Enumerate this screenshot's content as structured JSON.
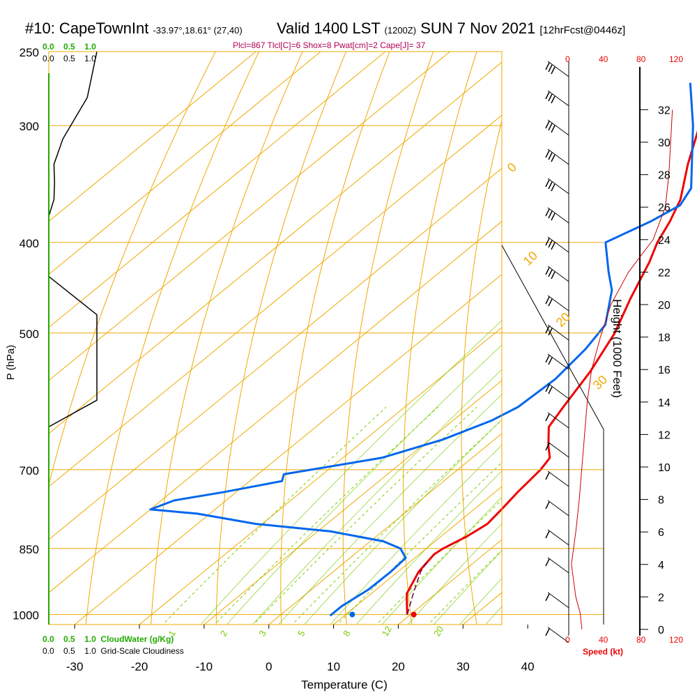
{
  "header": {
    "station": "#10: CapeTownInt",
    "coords": "-33.97°,18.61° (27,40)",
    "valid": "Valid 1400 LST",
    "zulu": "(1200Z)",
    "date": "SUN 7 Nov 2021",
    "forecast": "[12hrFcst@0446z]"
  },
  "stats": "Plcl=867 Tlcl[C]=6 Shox=8 Pwat[cm]=2 Cape[J]= 37",
  "cloudwater": {
    "label": "CloudWater (g/Kg)",
    "ticks": [
      "0.0",
      "0.5",
      "1.0"
    ]
  },
  "cloudiness": {
    "label": "Grid-Scale Cloudiness",
    "ticks": [
      "0.0",
      "0.5",
      "1.0"
    ]
  },
  "speed_axis": {
    "label": "Speed (kt)",
    "ticks": [
      "0",
      "40",
      "80",
      "120"
    ]
  },
  "colors": {
    "temperature": "#ee0000",
    "dewpoint": "#0066ee",
    "isotherm": "#f0a800",
    "mixing_ratio": "#77cc00",
    "cloudiness": "#000000",
    "speed": "#cc0000",
    "grid": "#f0a800",
    "title_stats": "#b0005a"
  },
  "chart_data": {
    "type": "line",
    "xlabel": "Temperature (C)",
    "ylabel": "P (hPa)",
    "y2label": "Height (1000 Feet)",
    "xlim": [
      -34,
      36
    ],
    "ylim": [
      1025,
      250
    ],
    "y_scale": "log",
    "x_ticks": [
      -30,
      -20,
      -10,
      0,
      10,
      20,
      30,
      40
    ],
    "pressure_ticks": [
      250,
      300,
      400,
      500,
      700,
      850,
      1000
    ],
    "height_ticks": [
      0,
      2,
      4,
      6,
      8,
      10,
      12,
      14,
      16,
      18,
      20,
      22,
      24,
      26,
      28,
      30,
      32
    ],
    "series": [
      {
        "key": "temperature",
        "points": [
          {
            "p": 1000,
            "t": 19.5
          },
          {
            "p": 975,
            "t": 17.5
          },
          {
            "p": 950,
            "t": 15.5
          },
          {
            "p": 900,
            "t": 13.2
          },
          {
            "p": 862,
            "t": 12.3
          },
          {
            "p": 850,
            "t": 12.6
          },
          {
            "p": 825,
            "t": 14.0
          },
          {
            "p": 800,
            "t": 14.8
          },
          {
            "p": 770,
            "t": 14.2
          },
          {
            "p": 740,
            "t": 13.5
          },
          {
            "p": 700,
            "t": 12.8
          },
          {
            "p": 680,
            "t": 12.0
          },
          {
            "p": 660,
            "t": 9.5
          },
          {
            "p": 630,
            "t": 6.0
          },
          {
            "p": 600,
            "t": 4.5
          },
          {
            "p": 550,
            "t": 2.0
          },
          {
            "p": 500,
            "t": -1.5
          },
          {
            "p": 460,
            "t": -5.5
          },
          {
            "p": 420,
            "t": -9.5
          },
          {
            "p": 400,
            "t": -12.0
          },
          {
            "p": 380,
            "t": -14.0
          },
          {
            "p": 360,
            "t": -16.5
          },
          {
            "p": 330,
            "t": -22.0
          },
          {
            "p": 300,
            "t": -27.5
          },
          {
            "p": 270,
            "t": -33.0
          }
        ]
      },
      {
        "key": "dewpoint",
        "points": [
          {
            "p": 1003,
            "t": 7.8
          },
          {
            "p": 980,
            "t": 7.8
          },
          {
            "p": 940,
            "t": 8.8
          },
          {
            "p": 900,
            "t": 8.9
          },
          {
            "p": 870,
            "t": 8.6
          },
          {
            "p": 850,
            "t": 6.0
          },
          {
            "p": 835,
            "t": 2.0
          },
          {
            "p": 815,
            "t": -8.0
          },
          {
            "p": 800,
            "t": -21.0
          },
          {
            "p": 780,
            "t": -32.0
          },
          {
            "p": 772,
            "t": -40.0
          },
          {
            "p": 755,
            "t": -38.0
          },
          {
            "p": 740,
            "t": -32.0
          },
          {
            "p": 720,
            "t": -25.0
          },
          {
            "p": 708,
            "t": -26.0
          },
          {
            "p": 680,
            "t": -14.0
          },
          {
            "p": 650,
            "t": -8.0
          },
          {
            "p": 620,
            "t": -4.0
          },
          {
            "p": 600,
            "t": -2.5
          },
          {
            "p": 560,
            "t": -2.0
          },
          {
            "p": 520,
            "t": -3.0
          },
          {
            "p": 490,
            "t": -4.5
          },
          {
            "p": 450,
            "t": -10.0
          },
          {
            "p": 430,
            "t": -14.0
          },
          {
            "p": 400,
            "t": -20.0
          },
          {
            "p": 380,
            "t": -17.0
          },
          {
            "p": 365,
            "t": -15.5
          },
          {
            "p": 350,
            "t": -17.0
          },
          {
            "p": 300,
            "t": -28.5
          },
          {
            "p": 270,
            "t": -37.0
          }
        ]
      },
      {
        "key": "parcel",
        "points": [
          {
            "p": 1000,
            "t": 19.5
          },
          {
            "p": 950,
            "t": 16.5
          },
          {
            "p": 900,
            "t": 13.5
          },
          {
            "p": 875,
            "t": 12.5
          }
        ]
      }
    ],
    "cloudiness_profile": [
      {
        "p": 250,
        "v": 0.75
      },
      {
        "p": 280,
        "v": 0.6
      },
      {
        "p": 310,
        "v": 0.22
      },
      {
        "p": 330,
        "v": 0.08
      },
      {
        "p": 345,
        "v": 0.09
      },
      {
        "p": 360,
        "v": 0.08
      },
      {
        "p": 375,
        "v": 0.0
      },
      {
        "p": 435,
        "v": 0.0
      },
      {
        "p": 478,
        "v": 0.75
      },
      {
        "p": 590,
        "v": 0.75
      },
      {
        "p": 630,
        "v": 0.0
      }
    ],
    "wind_speed_profile": [
      {
        "h": 0,
        "kt": 15
      },
      {
        "h": 1,
        "kt": 13
      },
      {
        "h": 2,
        "kt": 8
      },
      {
        "h": 4,
        "kt": 3
      },
      {
        "h": 6,
        "kt": 8
      },
      {
        "h": 8,
        "kt": 12
      },
      {
        "h": 10,
        "kt": 15
      },
      {
        "h": 12,
        "kt": 18
      },
      {
        "h": 14,
        "kt": 21
      },
      {
        "h": 16,
        "kt": 26
      },
      {
        "h": 18,
        "kt": 36
      },
      {
        "h": 20,
        "kt": 48
      },
      {
        "h": 22,
        "kt": 68
      },
      {
        "h": 24,
        "kt": 96
      },
      {
        "h": 26,
        "kt": 110
      },
      {
        "h": 28,
        "kt": 114
      },
      {
        "h": 30,
        "kt": 116
      },
      {
        "h": 32,
        "kt": 118
      }
    ],
    "surface_temperature_point": {
      "p": 1000,
      "t": 20.5
    },
    "surface_dewpoint_point": {
      "p": 1000,
      "t": 11.0
    },
    "isotherm_labels": [
      {
        "t": 10,
        "text": "10"
      },
      {
        "t": 0,
        "text": "0"
      },
      {
        "t": -10,
        "text": "-10"
      },
      {
        "t": -20,
        "text": "-20"
      },
      {
        "t": -30,
        "text": "-30"
      }
    ],
    "dry_adiabat_labels": [
      "0",
      "10",
      "20",
      "30"
    ],
    "mixing_ratio_labels": [
      "1",
      "2",
      "3",
      "5",
      "8",
      "12",
      "20"
    ]
  }
}
